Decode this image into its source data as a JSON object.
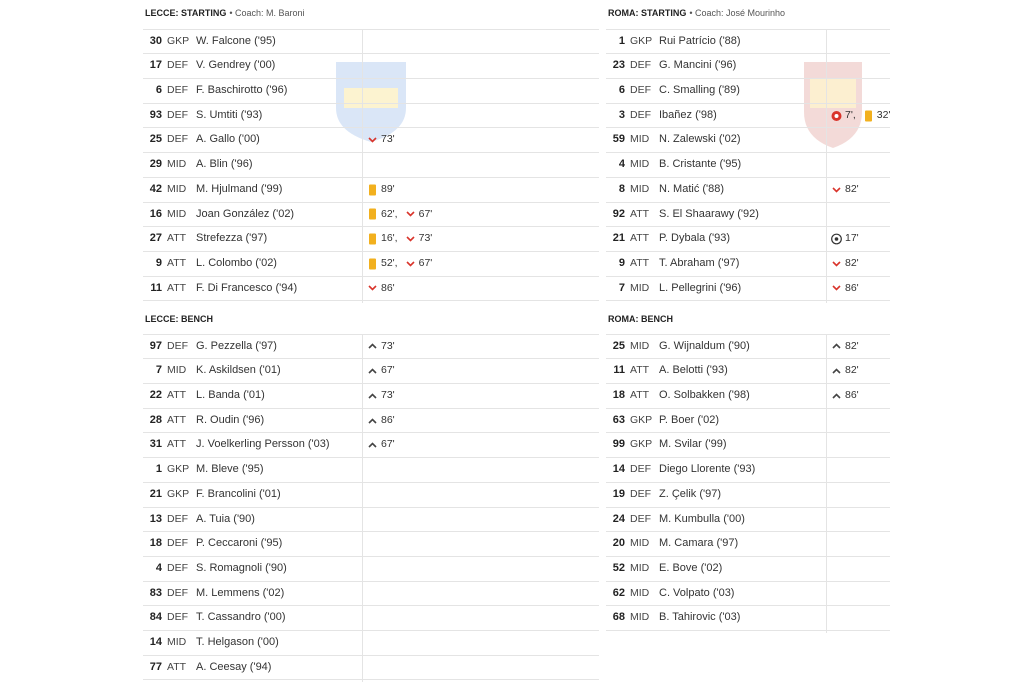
{
  "lecce": {
    "starting": {
      "title": "LECCE: STARTING",
      "coach": "• Coach: M. Baroni",
      "rows": [
        {
          "no": 30,
          "pos": "GKP",
          "name": "W. Falcone ('95)",
          "events": []
        },
        {
          "no": 17,
          "pos": "DEF",
          "name": "V. Gendrey ('00)",
          "events": []
        },
        {
          "no": 6,
          "pos": "DEF",
          "name": "F. Baschirotto ('96)",
          "events": []
        },
        {
          "no": 93,
          "pos": "DEF",
          "name": "S. Umtiti ('93)",
          "events": []
        },
        {
          "no": 25,
          "pos": "DEF",
          "name": "A. Gallo ('00)",
          "events": [
            {
              "icon": "sub-out",
              "text": "73'"
            }
          ]
        },
        {
          "no": 29,
          "pos": "MID",
          "name": "A. Blin ('96)",
          "events": []
        },
        {
          "no": 42,
          "pos": "MID",
          "name": "M. Hjulmand ('99)",
          "events": [
            {
              "icon": "yellow-card",
              "text": "89'"
            }
          ]
        },
        {
          "no": 16,
          "pos": "MID",
          "name": "Joan González ('02)",
          "events": [
            {
              "icon": "yellow-card",
              "text": "62',"
            },
            {
              "icon": "sub-out",
              "text": "67'"
            }
          ]
        },
        {
          "no": 27,
          "pos": "ATT",
          "name": "Strefezza ('97)",
          "events": [
            {
              "icon": "yellow-card",
              "text": "16',"
            },
            {
              "icon": "sub-out",
              "text": "73'"
            }
          ]
        },
        {
          "no": 9,
          "pos": "ATT",
          "name": "L. Colombo ('02)",
          "events": [
            {
              "icon": "yellow-card",
              "text": "52',"
            },
            {
              "icon": "sub-out",
              "text": "67'"
            }
          ]
        },
        {
          "no": 11,
          "pos": "ATT",
          "name": "F. Di Francesco ('94)",
          "events": [
            {
              "icon": "sub-out",
              "text": "86'"
            }
          ]
        }
      ]
    },
    "bench": {
      "title": "LECCE: BENCH",
      "rows": [
        {
          "no": 97,
          "pos": "DEF",
          "name": "G. Pezzella ('97)",
          "events": [
            {
              "icon": "sub-in",
              "text": "73'"
            }
          ]
        },
        {
          "no": 7,
          "pos": "MID",
          "name": "K. Askildsen ('01)",
          "events": [
            {
              "icon": "sub-in",
              "text": "67'"
            }
          ]
        },
        {
          "no": 22,
          "pos": "ATT",
          "name": "L. Banda ('01)",
          "events": [
            {
              "icon": "sub-in",
              "text": "73'"
            }
          ]
        },
        {
          "no": 28,
          "pos": "ATT",
          "name": "R. Oudin ('96)",
          "events": [
            {
              "icon": "sub-in",
              "text": "86'"
            }
          ]
        },
        {
          "no": 31,
          "pos": "ATT",
          "name": "J. Voelkerling Persson ('03)",
          "events": [
            {
              "icon": "sub-in",
              "text": "67'"
            }
          ]
        },
        {
          "no": 1,
          "pos": "GKP",
          "name": "M. Bleve ('95)",
          "events": []
        },
        {
          "no": 21,
          "pos": "GKP",
          "name": "F. Brancolini ('01)",
          "events": []
        },
        {
          "no": 13,
          "pos": "DEF",
          "name": "A. Tuia ('90)",
          "events": []
        },
        {
          "no": 18,
          "pos": "DEF",
          "name": "P. Ceccaroni ('95)",
          "events": []
        },
        {
          "no": 4,
          "pos": "DEF",
          "name": "S. Romagnoli ('90)",
          "events": []
        },
        {
          "no": 83,
          "pos": "DEF",
          "name": "M. Lemmens ('02)",
          "events": []
        },
        {
          "no": 84,
          "pos": "DEF",
          "name": "T. Cassandro ('00)",
          "events": []
        },
        {
          "no": 14,
          "pos": "MID",
          "name": "T. Helgason ('00)",
          "events": []
        },
        {
          "no": 77,
          "pos": "ATT",
          "name": "A. Ceesay ('94)",
          "events": []
        }
      ]
    }
  },
  "roma": {
    "starting": {
      "title": "ROMA: STARTING",
      "coach": "• Coach: José Mourinho",
      "rows": [
        {
          "no": 1,
          "pos": "GKP",
          "name": "Rui Patrício ('88)",
          "events": []
        },
        {
          "no": 23,
          "pos": "DEF",
          "name": "G. Mancini ('96)",
          "events": []
        },
        {
          "no": 6,
          "pos": "DEF",
          "name": "C. Smalling ('89)",
          "events": []
        },
        {
          "no": 3,
          "pos": "DEF",
          "name": "Ibañez ('98)",
          "events": [
            {
              "icon": "own-goal",
              "text": "7',"
            },
            {
              "icon": "yellow-card",
              "text": "32'"
            }
          ]
        },
        {
          "no": 59,
          "pos": "MID",
          "name": "N. Zalewski ('02)",
          "events": []
        },
        {
          "no": 4,
          "pos": "MID",
          "name": "B. Cristante ('95)",
          "events": []
        },
        {
          "no": 8,
          "pos": "MID",
          "name": "N. Matić ('88)",
          "events": [
            {
              "icon": "sub-out",
              "text": "82'"
            }
          ]
        },
        {
          "no": 92,
          "pos": "ATT",
          "name": "S. El Shaarawy ('92)",
          "events": []
        },
        {
          "no": 21,
          "pos": "ATT",
          "name": "P. Dybala ('93)",
          "events": [
            {
              "icon": "goal",
              "text": "17'"
            }
          ]
        },
        {
          "no": 9,
          "pos": "ATT",
          "name": "T. Abraham ('97)",
          "events": [
            {
              "icon": "sub-out",
              "text": "82'"
            }
          ]
        },
        {
          "no": 7,
          "pos": "MID",
          "name": "L. Pellegrini ('96)",
          "events": [
            {
              "icon": "sub-out",
              "text": "86'"
            }
          ]
        }
      ]
    },
    "bench": {
      "title": "ROMA: BENCH",
      "rows": [
        {
          "no": 25,
          "pos": "MID",
          "name": "G. Wijnaldum ('90)",
          "events": [
            {
              "icon": "sub-in",
              "text": "82'"
            }
          ]
        },
        {
          "no": 11,
          "pos": "ATT",
          "name": "A. Belotti ('93)",
          "events": [
            {
              "icon": "sub-in",
              "text": "82'"
            }
          ]
        },
        {
          "no": 18,
          "pos": "ATT",
          "name": "O. Solbakken ('98)",
          "events": [
            {
              "icon": "sub-in",
              "text": "86'"
            }
          ]
        },
        {
          "no": 63,
          "pos": "GKP",
          "name": "P. Boer ('02)",
          "events": []
        },
        {
          "no": 99,
          "pos": "GKP",
          "name": "M. Svilar ('99)",
          "events": []
        },
        {
          "no": 14,
          "pos": "DEF",
          "name": "Diego Llorente ('93)",
          "events": []
        },
        {
          "no": 19,
          "pos": "DEF",
          "name": "Z. Çelik ('97)",
          "events": []
        },
        {
          "no": 24,
          "pos": "DEF",
          "name": "M. Kumbulla ('00)",
          "events": []
        },
        {
          "no": 20,
          "pos": "MID",
          "name": "M. Camara ('97)",
          "events": []
        },
        {
          "no": 52,
          "pos": "MID",
          "name": "E. Bove ('02)",
          "events": []
        },
        {
          "no": 62,
          "pos": "MID",
          "name": "C. Volpato ('03)",
          "events": []
        },
        {
          "no": 68,
          "pos": "MID",
          "name": "B. Tahirovic ('03)",
          "events": []
        }
      ]
    }
  }
}
